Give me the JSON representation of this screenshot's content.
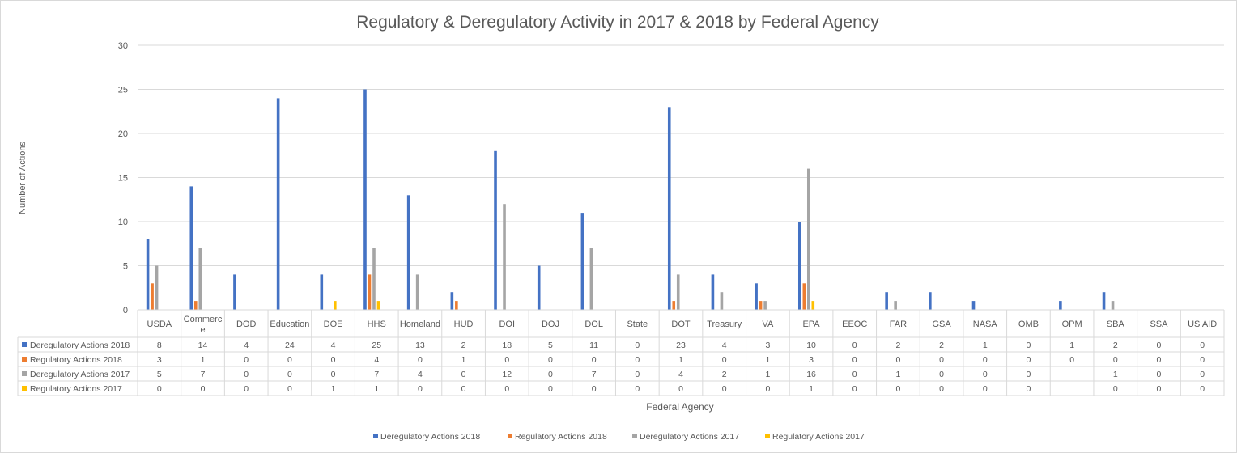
{
  "chart_data": {
    "type": "bar",
    "title": "Regulatory & Deregulatory Activity in 2017 & 2018 by Federal Agency",
    "xlabel": "Federal Agency",
    "ylabel": "Number of Actions",
    "ylim": [
      0,
      30
    ],
    "yticks": [
      "0",
      "5",
      "10",
      "15",
      "20",
      "25",
      "30"
    ],
    "grid": true,
    "legend_position": "bottom",
    "data_table": true,
    "categories": [
      "USDA",
      "Commerce",
      "DOD",
      "Education",
      "DOE",
      "HHS",
      "Homeland",
      "HUD",
      "DOI",
      "DOJ",
      "DOL",
      "State",
      "DOT",
      "Treasury",
      "VA",
      "EPA",
      "EEOC",
      "FAR",
      "GSA",
      "NASA",
      "OMB",
      "OPM",
      "SBA",
      "SSA",
      "US AID"
    ],
    "category_display": [
      "USDA",
      "Commerc\ne",
      "DOD",
      "Education",
      "DOE",
      "HHS",
      "Homeland",
      "HUD",
      "DOI",
      "DOJ",
      "DOL",
      "State",
      "DOT",
      "Treasury",
      "VA",
      "EPA",
      "EEOC",
      "FAR",
      "GSA",
      "NASA",
      "OMB",
      "OPM",
      "SBA",
      "SSA",
      "US AID"
    ],
    "series": [
      {
        "name": "Deregulatory Actions 2018",
        "color": "#4472C4",
        "values": [
          8,
          14,
          4,
          24,
          4,
          25,
          13,
          2,
          18,
          5,
          11,
          0,
          23,
          4,
          3,
          10,
          0,
          2,
          2,
          1,
          0,
          1,
          2,
          0,
          0
        ]
      },
      {
        "name": "Regulatory Actions 2018",
        "color": "#ED7D31",
        "values": [
          3,
          1,
          0,
          0,
          0,
          4,
          0,
          1,
          0,
          0,
          0,
          0,
          1,
          0,
          1,
          3,
          0,
          0,
          0,
          0,
          0,
          0,
          0,
          0,
          0
        ]
      },
      {
        "name": "Deregulatory Actions 2017",
        "color": "#A5A5A5",
        "values": [
          5,
          7,
          0,
          0,
          0,
          7,
          4,
          0,
          12,
          0,
          7,
          0,
          4,
          2,
          1,
          16,
          0,
          1,
          0,
          0,
          0,
          null,
          1,
          0,
          0
        ]
      },
      {
        "name": "Regulatory Actions 2017",
        "color": "#FFC000",
        "values": [
          0,
          0,
          0,
          0,
          1,
          1,
          0,
          0,
          0,
          0,
          0,
          0,
          0,
          0,
          0,
          1,
          0,
          0,
          0,
          0,
          0,
          null,
          0,
          0,
          0
        ]
      }
    ]
  },
  "colors": {
    "axis_text": "#595959",
    "grid": "#D9D9D9",
    "title": "#595959"
  }
}
